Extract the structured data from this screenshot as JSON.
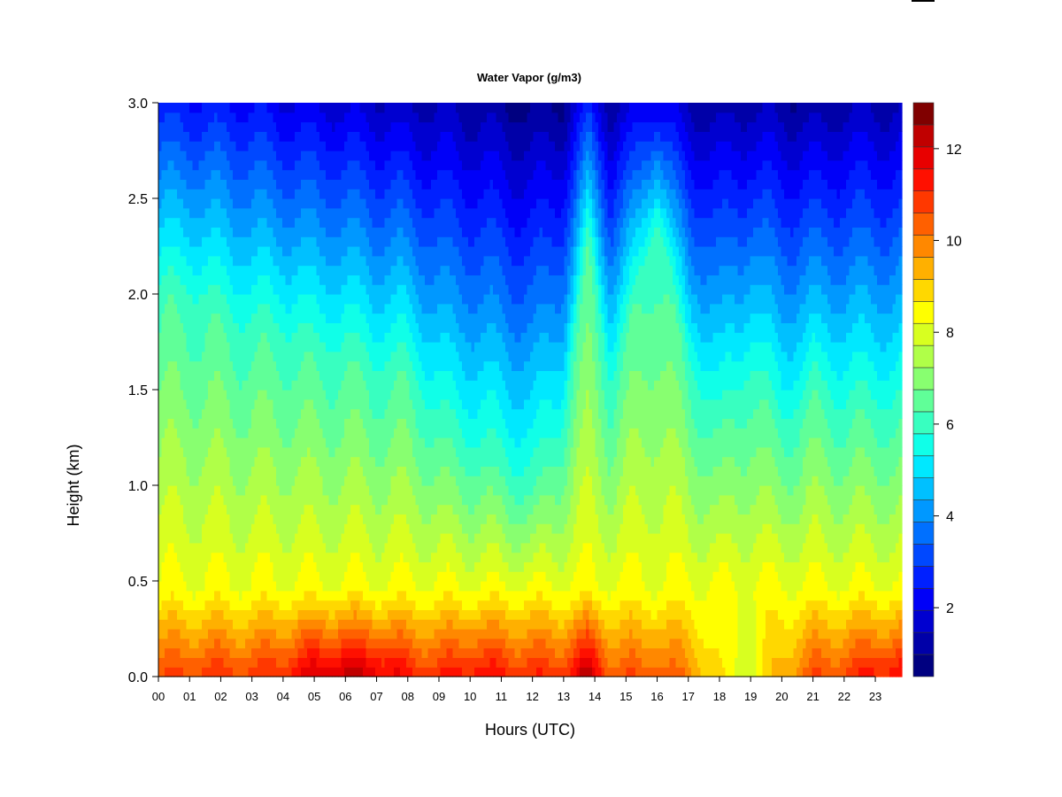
{
  "chart_data": {
    "type": "heatmap",
    "title": "Water Vapor (g/m3)",
    "xlabel": "Hours (UTC)",
    "ylabel": "Height (km)",
    "x_tick_labels": [
      "00",
      "01",
      "02",
      "03",
      "04",
      "05",
      "06",
      "07",
      "08",
      "09",
      "10",
      "11",
      "12",
      "13",
      "14",
      "15",
      "16",
      "17",
      "18",
      "19",
      "20",
      "21",
      "22",
      "23"
    ],
    "y_ticks": [
      0.0,
      0.5,
      1.0,
      1.5,
      2.0,
      2.5,
      3.0
    ],
    "y_tick_labels": [
      "0.0",
      "0.5",
      "1.0",
      "1.5",
      "2.0",
      "2.5",
      "3.0"
    ],
    "xlim": [
      0,
      23.85
    ],
    "ylim": [
      0,
      3.0
    ],
    "colorbar": {
      "range": [
        0.5,
        13
      ],
      "levels": 25,
      "ticks": [
        2,
        4,
        6,
        8,
        10,
        12
      ],
      "tick_labels": [
        "2",
        "4",
        "6",
        "8",
        "10",
        "12"
      ],
      "colors": [
        "#000080",
        "#0000a8",
        "#0000d0",
        "#0000f8",
        "#0020ff",
        "#0048ff",
        "#0070ff",
        "#0098ff",
        "#00c0ff",
        "#00e8ff",
        "#10ffe8",
        "#38ffc0",
        "#60ff98",
        "#88ff70",
        "#b0ff48",
        "#d8ff20",
        "#ffff00",
        "#ffd800",
        "#ffb000",
        "#ff8800",
        "#ff6000",
        "#ff3800",
        "#ff1000",
        "#e80000",
        "#c00000",
        "#800000"
      ]
    },
    "profiles_note_hours": [
      0,
      1,
      2,
      3,
      4,
      5,
      6,
      7,
      8,
      9,
      10,
      11,
      12,
      13,
      13.8,
      14.5,
      16,
      17,
      18,
      19,
      20,
      21,
      22,
      23,
      23.85
    ],
    "surface_values": [
      10.5,
      10.8,
      10.9,
      10.8,
      11.2,
      12.0,
      12.3,
      12.0,
      11.3,
      11.0,
      11.5,
      11.3,
      11.0,
      11.0,
      12.5,
      10.5,
      10.5,
      10.0,
      8.5,
      8.0,
      9.5,
      10.5,
      10.8,
      11.3,
      11.5
    ],
    "top_height_km_of_moist_layer": [
      2.0,
      2.0,
      1.9,
      1.8,
      1.8,
      1.7,
      1.7,
      1.6,
      1.6,
      1.3,
      1.2,
      1.1,
      1.0,
      1.3,
      2.3,
      1.5,
      2.4,
      1.6,
      1.3,
      1.6,
      1.3,
      1.5,
      1.4,
      1.4,
      1.4
    ],
    "series": [
      {
        "values_at_3_0km": [
          2.5,
          2.5,
          2.4,
          2.3,
          2.0,
          1.9,
          1.7,
          1.6,
          1.4,
          1.3,
          1.2,
          1.0,
          0.8,
          1.0,
          2.5,
          1.2,
          2.2,
          1.3,
          1.1,
          1.3,
          1.2,
          1.0,
          1.3,
          1.3,
          1.3
        ]
      }
    ]
  }
}
